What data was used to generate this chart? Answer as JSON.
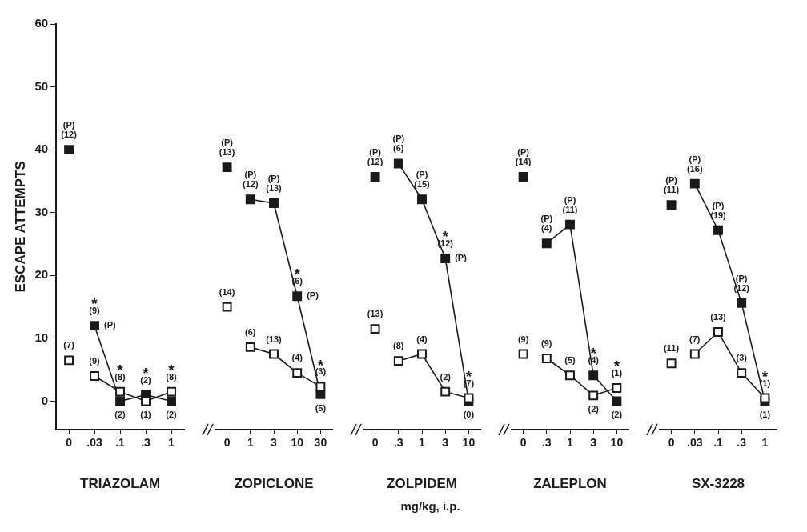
{
  "chart_data": [
    {
      "type": "line",
      "xlabel": "TRIAZOLAM",
      "ylabel": "ESCAPE ATTEMPTS",
      "categories": [
        "0",
        ".03",
        ".1",
        ".3",
        "1"
      ],
      "ylim": [
        -4.5,
        60
      ],
      "yticks": [
        0,
        10,
        20,
        30,
        40,
        50,
        60
      ],
      "marker": "square",
      "series": [
        {
          "type": "scatter",
          "color": "#ffffff",
          "values": [
            6.5,
            null,
            null,
            null,
            null
          ]
        },
        {
          "type": "line",
          "color": "#ffffff",
          "values": [
            null,
            4,
            1.5,
            0,
            1.5
          ]
        },
        {
          "type": "scatter",
          "color": "#1a1a1a",
          "values": [
            40,
            null,
            null,
            null,
            null
          ]
        },
        {
          "type": "line",
          "color": "#1a1a1a",
          "values": [
            null,
            12,
            0,
            1,
            0
          ]
        }
      ],
      "annotations": [
        {
          "text": "(12)",
          "x": "0",
          "y": 40
        },
        {
          "text": "(P)",
          "x": "0",
          "y": 40
        },
        {
          "text": "(7)",
          "x": "0",
          "y": 6.5
        },
        {
          "text": "(9)",
          "x": ".03",
          "y": 12
        },
        {
          "text": "*",
          "x": ".03",
          "y": 12
        },
        {
          "text": "(P)",
          "x": ".03",
          "y": 12
        },
        {
          "text": "(9)",
          "x": ".03",
          "y": 4
        },
        {
          "text": "(8)",
          "x": ".1",
          "y": 1.5
        },
        {
          "text": "*",
          "x": ".1",
          "y": 1.5
        },
        {
          "text": "(2)",
          "x": ".1",
          "y": 0
        },
        {
          "text": "(2)",
          "x": ".3",
          "y": 1
        },
        {
          "text": "*",
          "x": ".3",
          "y": 1
        },
        {
          "text": "(1)",
          "x": ".3",
          "y": 0
        },
        {
          "text": "(8)",
          "x": "1",
          "y": 1.5
        },
        {
          "text": "*",
          "x": "1",
          "y": 1.5
        },
        {
          "text": "(2)",
          "x": "1",
          "y": 0
        }
      ]
    },
    {
      "type": "line",
      "xlabel": "ZOPICLONE",
      "categories": [
        "0",
        "1",
        "3",
        "10",
        "30"
      ],
      "ylim": [
        -4.5,
        60
      ],
      "yticks": [
        0,
        10,
        20,
        30,
        40,
        50,
        60
      ],
      "tick_labels": "x",
      "marker": "square",
      "series": [
        {
          "type": "scatter",
          "color": "#ffffff",
          "values": [
            15,
            null,
            null,
            null,
            null
          ]
        },
        {
          "type": "line",
          "color": "#ffffff",
          "values": [
            null,
            8.6,
            7.5,
            4.5,
            2.3
          ]
        },
        {
          "type": "scatter",
          "color": "#1a1a1a",
          "values": [
            37.2,
            null,
            null,
            null,
            null
          ]
        },
        {
          "type": "line",
          "color": "#1a1a1a",
          "values": [
            null,
            32.1,
            31.5,
            16.7,
            1.1
          ]
        }
      ],
      "annotations": [
        {
          "text": "(13)",
          "x": "0",
          "y": 37.2
        },
        {
          "text": "(P)",
          "x": "0",
          "y": 37.2
        },
        {
          "text": "(14)",
          "x": "0",
          "y": 15
        },
        {
          "text": "(12)",
          "x": "1",
          "y": 32.1
        },
        {
          "text": "(P)",
          "x": "1",
          "y": 32.1
        },
        {
          "text": "(6)",
          "x": "1",
          "y": 8.6
        },
        {
          "text": "(13)",
          "x": "3",
          "y": 31.5
        },
        {
          "text": "(P)",
          "x": "3",
          "y": 31.5
        },
        {
          "text": "(13)",
          "x": "3",
          "y": 7.5
        },
        {
          "text": "(6)",
          "x": "10",
          "y": 16.7
        },
        {
          "text": "*",
          "x": "10",
          "y": 16.7
        },
        {
          "text": "(P)",
          "x": "10",
          "y": 16.7
        },
        {
          "text": "(4)",
          "x": "10",
          "y": 4.5
        },
        {
          "text": "(3)",
          "x": "30",
          "y": 2.3
        },
        {
          "text": "*",
          "x": "30",
          "y": 2.3
        },
        {
          "text": "(5)",
          "x": "30",
          "y": 1.1
        }
      ]
    },
    {
      "type": "line",
      "xlabel": "ZOLPIDEM",
      "categories": [
        "0",
        ".3",
        "1",
        "3",
        "10"
      ],
      "ylim": [
        -4.5,
        60
      ],
      "yticks": [
        0,
        10,
        20,
        30,
        40,
        50,
        60
      ],
      "tick_labels": "x",
      "marker": "square",
      "series": [
        {
          "type": "scatter",
          "color": "#ffffff",
          "values": [
            11.5,
            null,
            null,
            null,
            null
          ]
        },
        {
          "type": "line",
          "color": "#ffffff",
          "values": [
            null,
            6.4,
            7.5,
            1.5,
            0.5
          ]
        },
        {
          "type": "scatter",
          "color": "#1a1a1a",
          "values": [
            35.7,
            null,
            null,
            null,
            null
          ]
        },
        {
          "type": "line",
          "color": "#1a1a1a",
          "values": [
            null,
            37.8,
            32.1,
            22.7,
            0
          ]
        }
      ],
      "annotations": [
        {
          "text": "(12)",
          "x": "0",
          "y": 35.7
        },
        {
          "text": "(P)",
          "x": "0",
          "y": 35.7
        },
        {
          "text": "(13)",
          "x": "0",
          "y": 11.5
        },
        {
          "text": "(6)",
          "x": ".3",
          "y": 37.8
        },
        {
          "text": "(P)",
          "x": ".3",
          "y": 37.8
        },
        {
          "text": "(8)",
          "x": ".3",
          "y": 6.4
        },
        {
          "text": "(15)",
          "x": "1",
          "y": 32.1
        },
        {
          "text": "(P)",
          "x": "1",
          "y": 32.1
        },
        {
          "text": "(4)",
          "x": "1",
          "y": 7.5
        },
        {
          "text": "(12)",
          "x": "3",
          "y": 22.7
        },
        {
          "text": "*",
          "x": "3",
          "y": 22.7
        },
        {
          "text": "(P)",
          "x": "3",
          "y": 22.7
        },
        {
          "text": "(2)",
          "x": "3",
          "y": 1.5
        },
        {
          "text": "(7)",
          "x": "10",
          "y": 0.5
        },
        {
          "text": "*",
          "x": "10",
          "y": 0.5
        },
        {
          "text": "(0)",
          "x": "10",
          "y": 0
        },
        "mg/kg, i.p."
      ]
    },
    {
      "type": "line",
      "xlabel": "ZALEPLON",
      "categories": [
        "0",
        ".3",
        "1",
        "3",
        "10"
      ],
      "ylim": [
        -4.5,
        60
      ],
      "yticks": [
        0,
        10,
        20,
        30,
        40,
        50,
        60
      ],
      "tick_labels": "x",
      "marker": "square",
      "series": [
        {
          "type": "scatter",
          "color": "#ffffff",
          "values": [
            7.5,
            null,
            null,
            null,
            null
          ]
        },
        {
          "type": "line",
          "color": "#ffffff",
          "values": [
            null,
            6.8,
            4.1,
            0.9,
            2.1
          ]
        },
        {
          "type": "scatter",
          "color": "#1a1a1a",
          "values": [
            35.7,
            null,
            null,
            null,
            null
          ]
        },
        {
          "type": "line",
          "color": "#1a1a1a",
          "values": [
            null,
            25.1,
            28.1,
            4.1,
            0
          ]
        }
      ],
      "annotations": [
        {
          "text": "(14)",
          "x": "0",
          "y": 35.7
        },
        {
          "text": "(P)",
          "x": "0",
          "y": 35.7
        },
        {
          "text": "(9)",
          "x": "0",
          "y": 7.5
        },
        {
          "text": "(4)",
          "x": ".3",
          "y": 25.1
        },
        {
          "text": "(P)",
          "x": ".3",
          "y": 25.1
        },
        {
          "text": "(9)",
          "x": ".3",
          "y": 6.8
        },
        {
          "text": "(11)",
          "x": "1",
          "y": 28.1
        },
        {
          "text": "(P)",
          "x": "1",
          "y": 28.1
        },
        {
          "text": "(5)",
          "x": "1",
          "y": 4.1
        },
        {
          "text": "(4)",
          "x": "3",
          "y": 4.1
        },
        {
          "text": "*",
          "x": "3",
          "y": 4.1
        },
        {
          "text": "(2)",
          "x": "3",
          "y": 0.9
        },
        {
          "text": "(1)",
          "x": "10",
          "y": 2.1
        },
        {
          "text": "*",
          "x": "10",
          "y": 2.1
        },
        {
          "text": "(2)",
          "x": "10",
          "y": 0
        }
      ]
    },
    {
      "type": "line",
      "xlabel": "SX-3228",
      "categories": [
        "0",
        ".03",
        ".1",
        ".3",
        "1"
      ],
      "ylim": [
        -4.5,
        60
      ],
      "yticks": [
        0,
        10,
        20,
        30,
        40,
        50,
        60
      ],
      "tick_labels": "x",
      "marker": "square",
      "series": [
        {
          "type": "scatter",
          "color": "#ffffff",
          "values": [
            6,
            null,
            null,
            null,
            null
          ]
        },
        {
          "type": "line",
          "color": "#ffffff",
          "values": [
            null,
            7.5,
            11,
            4.5,
            0.5
          ]
        },
        {
          "type": "scatter",
          "color": "#1a1a1a",
          "values": [
            31.2,
            null,
            null,
            null,
            null
          ]
        },
        {
          "type": "line",
          "color": "#1a1a1a",
          "values": [
            null,
            34.6,
            27.2,
            15.6,
            0
          ]
        }
      ],
      "annotations": [
        {
          "text": "(11)",
          "x": "0",
          "y": 31.2
        },
        {
          "text": "(P)",
          "x": "0",
          "y": 31.2
        },
        {
          "text": "(11)",
          "x": "0",
          "y": 6
        },
        {
          "text": "(16)",
          "x": ".03",
          "y": 34.6
        },
        {
          "text": "(P)",
          "x": ".03",
          "y": 34.6
        },
        {
          "text": "(7)",
          "x": ".03",
          "y": 7.5
        },
        {
          "text": "(19)",
          "x": ".1",
          "y": 27.2
        },
        {
          "text": "(P)",
          "x": ".1",
          "y": 27.2
        },
        {
          "text": "(13)",
          "x": ".1",
          "y": 11
        },
        {
          "text": "(12)",
          "x": ".3",
          "y": 15.6
        },
        {
          "text": "(P)",
          "x": ".3",
          "y": 15.6
        },
        {
          "text": "(3)",
          "x": ".3",
          "y": 4.5
        },
        {
          "text": "(1)",
          "x": "1",
          "y": 0.5
        },
        {
          "text": "*",
          "x": "1",
          "y": 0.5
        },
        {
          "text": "(1)",
          "x": "1",
          "y": 0
        }
      ]
    }
  ]
}
